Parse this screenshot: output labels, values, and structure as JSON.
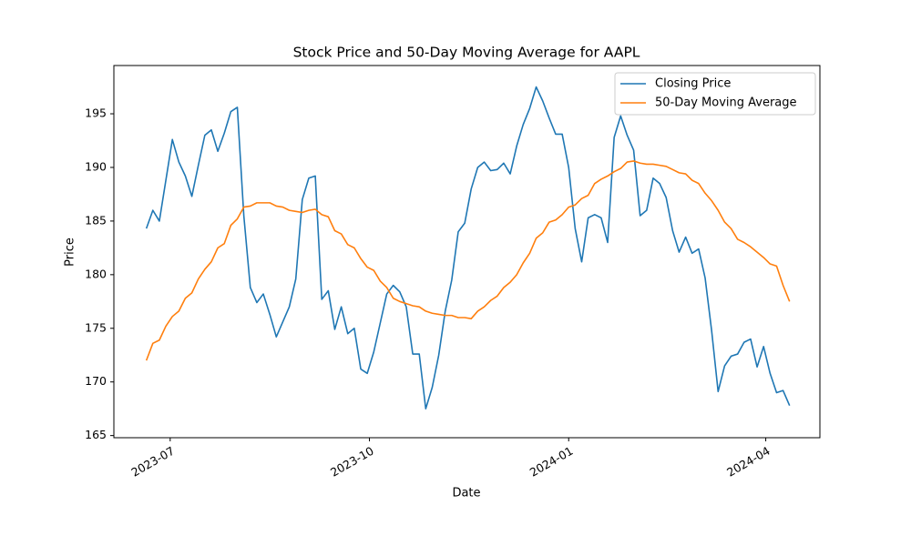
{
  "chart_data": {
    "type": "line",
    "title": "Stock Price and 50-Day Moving Average for AAPL",
    "x_label": "Date",
    "y_label": "Price",
    "x": [
      "2023-06-20",
      "2023-06-23",
      "2023-06-26",
      "2023-06-29",
      "2023-07-02",
      "2023-07-05",
      "2023-07-08",
      "2023-07-11",
      "2023-07-14",
      "2023-07-17",
      "2023-07-20",
      "2023-07-23",
      "2023-07-26",
      "2023-07-29",
      "2023-08-01",
      "2023-08-04",
      "2023-08-07",
      "2023-08-10",
      "2023-08-13",
      "2023-08-16",
      "2023-08-19",
      "2023-08-22",
      "2023-08-25",
      "2023-08-28",
      "2023-08-31",
      "2023-09-03",
      "2023-09-06",
      "2023-09-09",
      "2023-09-12",
      "2023-09-15",
      "2023-09-18",
      "2023-09-21",
      "2023-09-24",
      "2023-09-27",
      "2023-09-30",
      "2023-10-03",
      "2023-10-06",
      "2023-10-09",
      "2023-10-12",
      "2023-10-15",
      "2023-10-18",
      "2023-10-21",
      "2023-10-24",
      "2023-10-27",
      "2023-10-30",
      "2023-11-02",
      "2023-11-05",
      "2023-11-08",
      "2023-11-11",
      "2023-11-14",
      "2023-11-17",
      "2023-11-20",
      "2023-11-23",
      "2023-11-26",
      "2023-11-29",
      "2023-12-02",
      "2023-12-05",
      "2023-12-08",
      "2023-12-11",
      "2023-12-14",
      "2023-12-17",
      "2023-12-20",
      "2023-12-23",
      "2023-12-26",
      "2023-12-29",
      "2024-01-01",
      "2024-01-04",
      "2024-01-07",
      "2024-01-10",
      "2024-01-13",
      "2024-01-16",
      "2024-01-19",
      "2024-01-22",
      "2024-01-25",
      "2024-01-28",
      "2024-01-31",
      "2024-02-03",
      "2024-02-06",
      "2024-02-09",
      "2024-02-12",
      "2024-02-15",
      "2024-02-18",
      "2024-02-21",
      "2024-02-24",
      "2024-02-27",
      "2024-03-01",
      "2024-03-04",
      "2024-03-07",
      "2024-03-10",
      "2024-03-13",
      "2024-03-16",
      "2024-03-19",
      "2024-03-22",
      "2024-03-25",
      "2024-03-28",
      "2024-03-31",
      "2024-04-03",
      "2024-04-06",
      "2024-04-09",
      "2024-04-12"
    ],
    "series": [
      {
        "name": "Closing Price",
        "color": "#1f77b4",
        "values": [
          184.3,
          186.0,
          185.0,
          188.8,
          192.6,
          190.5,
          189.2,
          187.3,
          190.2,
          193.0,
          193.5,
          191.5,
          193.2,
          195.2,
          195.6,
          185.5,
          178.8,
          177.4,
          178.2,
          176.3,
          174.2,
          175.6,
          177.0,
          179.6,
          187.0,
          189.0,
          189.2,
          177.7,
          178.5,
          174.9,
          177.0,
          174.5,
          175.0,
          171.2,
          170.8,
          172.8,
          175.5,
          178.2,
          179.0,
          178.4,
          177.0,
          172.6,
          172.6,
          167.5,
          169.5,
          172.5,
          176.6,
          179.5,
          184.0,
          184.8,
          188.0,
          190.0,
          190.5,
          189.7,
          189.8,
          190.4,
          189.4,
          192.0,
          194.0,
          195.5,
          197.5,
          196.2,
          194.6,
          193.1,
          193.1,
          190.0,
          184.3,
          181.2,
          185.3,
          185.6,
          185.3,
          183.0,
          192.8,
          194.8,
          193.0,
          191.6,
          185.5,
          186.0,
          189.0,
          188.5,
          187.2,
          184.1,
          182.1,
          183.5,
          182.0,
          182.4,
          179.7,
          174.8,
          169.1,
          171.5,
          172.4,
          172.6,
          173.7,
          174.0,
          171.4,
          173.3,
          170.8,
          169.0,
          169.2,
          167.8
        ]
      },
      {
        "name": "50-Day Moving Average",
        "color": "#ff7f0e",
        "values": [
          172.0,
          173.6,
          173.9,
          175.2,
          176.1,
          176.6,
          177.8,
          178.3,
          179.6,
          180.5,
          181.2,
          182.5,
          182.9,
          184.6,
          185.2,
          186.3,
          186.4,
          186.7,
          186.7,
          186.7,
          186.4,
          186.3,
          186.0,
          185.9,
          185.8,
          186.0,
          186.1,
          185.6,
          185.4,
          184.1,
          183.8,
          182.8,
          182.5,
          181.5,
          180.7,
          180.4,
          179.4,
          178.8,
          177.8,
          177.5,
          177.3,
          177.1,
          177.0,
          176.6,
          176.4,
          176.3,
          176.2,
          176.2,
          176.0,
          176.0,
          175.9,
          176.6,
          177.0,
          177.6,
          178.0,
          178.8,
          179.3,
          180.0,
          181.1,
          182.0,
          183.4,
          183.9,
          184.9,
          185.1,
          185.6,
          186.3,
          186.5,
          187.1,
          187.4,
          188.5,
          188.9,
          189.2,
          189.6,
          189.9,
          190.5,
          190.6,
          190.4,
          190.3,
          190.3,
          190.2,
          190.1,
          189.8,
          189.5,
          189.4,
          188.8,
          188.5,
          187.6,
          186.9,
          186.0,
          184.9,
          184.3,
          183.3,
          183.0,
          182.6,
          182.1,
          181.6,
          181.0,
          180.8,
          179.0,
          177.5
        ]
      }
    ],
    "xlim": [
      "2023-06-05",
      "2024-04-26"
    ],
    "xticks": [
      {
        "value": "2023-07-01",
        "label": "2023-07"
      },
      {
        "value": "2023-10-01",
        "label": "2023-10"
      },
      {
        "value": "2024-01-01",
        "label": "2024-01"
      },
      {
        "value": "2024-04-01",
        "label": "2024-04"
      }
    ],
    "ylim": [
      164.8,
      199.5
    ],
    "yticks": [
      165,
      170,
      175,
      180,
      185,
      190,
      195
    ],
    "grid": false,
    "legend": "upper right"
  }
}
